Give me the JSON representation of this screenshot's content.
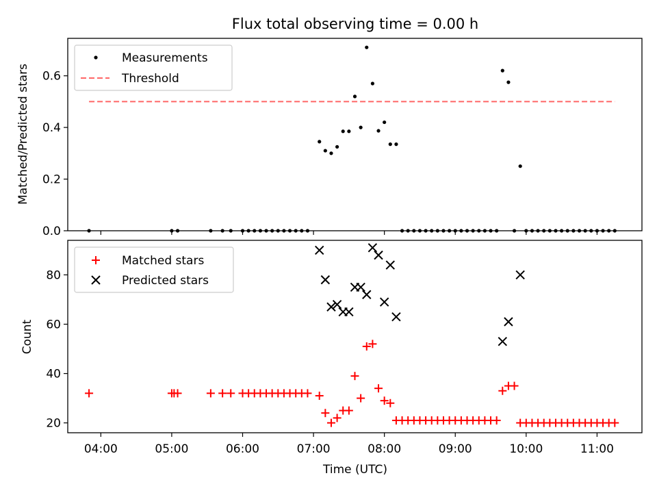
{
  "title": "Flux total observing time = 0.00 h",
  "colors": {
    "measurement": "#000000",
    "threshold": "#ff6666",
    "matched": "#ff0000",
    "predicted": "#000000",
    "frame": "#000000",
    "legend_border": "#cccccc"
  },
  "chart_data": [
    {
      "type": "scatter",
      "ylabel": "Matched/Predicted stars",
      "ylim": [
        0,
        0.745
      ],
      "yticks": [
        0.0,
        0.2,
        0.4,
        0.6
      ],
      "ytick_labels": [
        "0.0",
        "0.2",
        "0.4",
        "0.6"
      ],
      "xlim": [
        "03:32",
        "11:38"
      ],
      "grid": false,
      "legend": {
        "placement": "upper-left",
        "entries": [
          "Measurements",
          "Threshold"
        ]
      },
      "threshold": {
        "name": "Threshold",
        "y": 0.5,
        "x_start": "03:50",
        "x_end": "11:15"
      },
      "series": [
        {
          "name": "Measurements",
          "marker": "dot",
          "points": [
            [
              "03:50",
              0.0
            ],
            [
              "05:00",
              0.0
            ],
            [
              "05:05",
              0.0
            ],
            [
              "05:33",
              0.0
            ],
            [
              "05:43",
              0.0
            ],
            [
              "05:50",
              0.0
            ],
            [
              "06:00",
              0.0
            ],
            [
              "06:05",
              0.0
            ],
            [
              "06:10",
              0.0
            ],
            [
              "06:15",
              0.0
            ],
            [
              "06:20",
              0.0
            ],
            [
              "06:25",
              0.0
            ],
            [
              "06:30",
              0.0
            ],
            [
              "06:35",
              0.0
            ],
            [
              "06:40",
              0.0
            ],
            [
              "06:45",
              0.0
            ],
            [
              "06:50",
              0.0
            ],
            [
              "06:55",
              0.0
            ],
            [
              "07:05",
              0.345
            ],
            [
              "07:10",
              0.31
            ],
            [
              "07:15",
              0.3
            ],
            [
              "07:20",
              0.325
            ],
            [
              "07:25",
              0.385
            ],
            [
              "07:30",
              0.385
            ],
            [
              "07:35",
              0.52
            ],
            [
              "07:40",
              0.4
            ],
            [
              "07:45",
              0.71
            ],
            [
              "07:50",
              0.57
            ],
            [
              "07:55",
              0.387
            ],
            [
              "08:00",
              0.42
            ],
            [
              "08:05",
              0.335
            ],
            [
              "08:10",
              0.335
            ],
            [
              "08:15",
              0.0
            ],
            [
              "08:20",
              0.0
            ],
            [
              "08:25",
              0.0
            ],
            [
              "08:30",
              0.0
            ],
            [
              "08:35",
              0.0
            ],
            [
              "08:40",
              0.0
            ],
            [
              "08:45",
              0.0
            ],
            [
              "08:50",
              0.0
            ],
            [
              "08:55",
              0.0
            ],
            [
              "09:00",
              0.0
            ],
            [
              "09:05",
              0.0
            ],
            [
              "09:10",
              0.0
            ],
            [
              "09:15",
              0.0
            ],
            [
              "09:20",
              0.0
            ],
            [
              "09:25",
              0.0
            ],
            [
              "09:30",
              0.0
            ],
            [
              "09:35",
              0.0
            ],
            [
              "09:40",
              0.62
            ],
            [
              "09:45",
              0.575
            ],
            [
              "09:50",
              0.0
            ],
            [
              "09:55",
              0.25
            ],
            [
              "10:00",
              0.0
            ],
            [
              "10:05",
              0.0
            ],
            [
              "10:10",
              0.0
            ],
            [
              "10:15",
              0.0
            ],
            [
              "10:20",
              0.0
            ],
            [
              "10:25",
              0.0
            ],
            [
              "10:30",
              0.0
            ],
            [
              "10:35",
              0.0
            ],
            [
              "10:40",
              0.0
            ],
            [
              "10:45",
              0.0
            ],
            [
              "10:50",
              0.0
            ],
            [
              "10:55",
              0.0
            ],
            [
              "11:00",
              0.0
            ],
            [
              "11:05",
              0.0
            ],
            [
              "11:10",
              0.0
            ],
            [
              "11:15",
              0.0
            ]
          ]
        }
      ]
    },
    {
      "type": "scatter",
      "ylabel": "Count",
      "xlabel": "Time (UTC)",
      "ylim": [
        16,
        94
      ],
      "yticks": [
        20,
        40,
        60,
        80
      ],
      "ytick_labels": [
        "20",
        "40",
        "60",
        "80"
      ],
      "xlim": [
        "03:32",
        "11:38"
      ],
      "xticks": [
        "04:00",
        "05:00",
        "06:00",
        "07:00",
        "08:00",
        "09:00",
        "10:00",
        "11:00"
      ],
      "xtick_labels": [
        "04:00",
        "05:00",
        "06:00",
        "07:00",
        "08:00",
        "09:00",
        "10:00",
        "11:00"
      ],
      "grid": false,
      "legend": {
        "placement": "upper-left",
        "entries": [
          "Matched stars",
          "Predicted stars"
        ]
      },
      "series": [
        {
          "name": "Matched stars",
          "marker": "plus",
          "points": [
            [
              "03:50",
              32
            ],
            [
              "05:00",
              32
            ],
            [
              "05:02",
              32
            ],
            [
              "05:05",
              32
            ],
            [
              "05:33",
              32
            ],
            [
              "05:43",
              32
            ],
            [
              "05:50",
              32
            ],
            [
              "06:00",
              32
            ],
            [
              "06:05",
              32
            ],
            [
              "06:10",
              32
            ],
            [
              "06:15",
              32
            ],
            [
              "06:20",
              32
            ],
            [
              "06:25",
              32
            ],
            [
              "06:30",
              32
            ],
            [
              "06:35",
              32
            ],
            [
              "06:40",
              32
            ],
            [
              "06:45",
              32
            ],
            [
              "06:50",
              32
            ],
            [
              "06:55",
              32
            ],
            [
              "07:05",
              31
            ],
            [
              "07:10",
              24
            ],
            [
              "07:15",
              20
            ],
            [
              "07:20",
              22
            ],
            [
              "07:25",
              25
            ],
            [
              "07:30",
              25
            ],
            [
              "07:35",
              39
            ],
            [
              "07:40",
              30
            ],
            [
              "07:45",
              51
            ],
            [
              "07:50",
              52
            ],
            [
              "07:55",
              34
            ],
            [
              "08:00",
              29
            ],
            [
              "08:05",
              28
            ],
            [
              "08:10",
              21
            ],
            [
              "08:15",
              21
            ],
            [
              "08:20",
              21
            ],
            [
              "08:25",
              21
            ],
            [
              "08:30",
              21
            ],
            [
              "08:35",
              21
            ],
            [
              "08:40",
              21
            ],
            [
              "08:45",
              21
            ],
            [
              "08:50",
              21
            ],
            [
              "08:55",
              21
            ],
            [
              "09:00",
              21
            ],
            [
              "09:05",
              21
            ],
            [
              "09:10",
              21
            ],
            [
              "09:15",
              21
            ],
            [
              "09:20",
              21
            ],
            [
              "09:25",
              21
            ],
            [
              "09:30",
              21
            ],
            [
              "09:35",
              21
            ],
            [
              "09:40",
              33
            ],
            [
              "09:45",
              35
            ],
            [
              "09:50",
              35
            ],
            [
              "09:55",
              20
            ],
            [
              "10:00",
              20
            ],
            [
              "10:05",
              20
            ],
            [
              "10:10",
              20
            ],
            [
              "10:15",
              20
            ],
            [
              "10:20",
              20
            ],
            [
              "10:25",
              20
            ],
            [
              "10:30",
              20
            ],
            [
              "10:35",
              20
            ],
            [
              "10:40",
              20
            ],
            [
              "10:45",
              20
            ],
            [
              "10:50",
              20
            ],
            [
              "10:55",
              20
            ],
            [
              "11:00",
              20
            ],
            [
              "11:05",
              20
            ],
            [
              "11:10",
              20
            ],
            [
              "11:15",
              20
            ]
          ]
        },
        {
          "name": "Predicted stars",
          "marker": "x",
          "points": [
            [
              "07:05",
              90
            ],
            [
              "07:10",
              78
            ],
            [
              "07:15",
              67
            ],
            [
              "07:20",
              68
            ],
            [
              "07:25",
              65
            ],
            [
              "07:30",
              65
            ],
            [
              "07:35",
              75
            ],
            [
              "07:40",
              75
            ],
            [
              "07:45",
              72
            ],
            [
              "07:50",
              91
            ],
            [
              "07:55",
              88
            ],
            [
              "08:00",
              69
            ],
            [
              "08:05",
              84
            ],
            [
              "08:10",
              63
            ],
            [
              "09:40",
              53
            ],
            [
              "09:45",
              61
            ],
            [
              "09:55",
              80
            ]
          ]
        }
      ]
    }
  ]
}
